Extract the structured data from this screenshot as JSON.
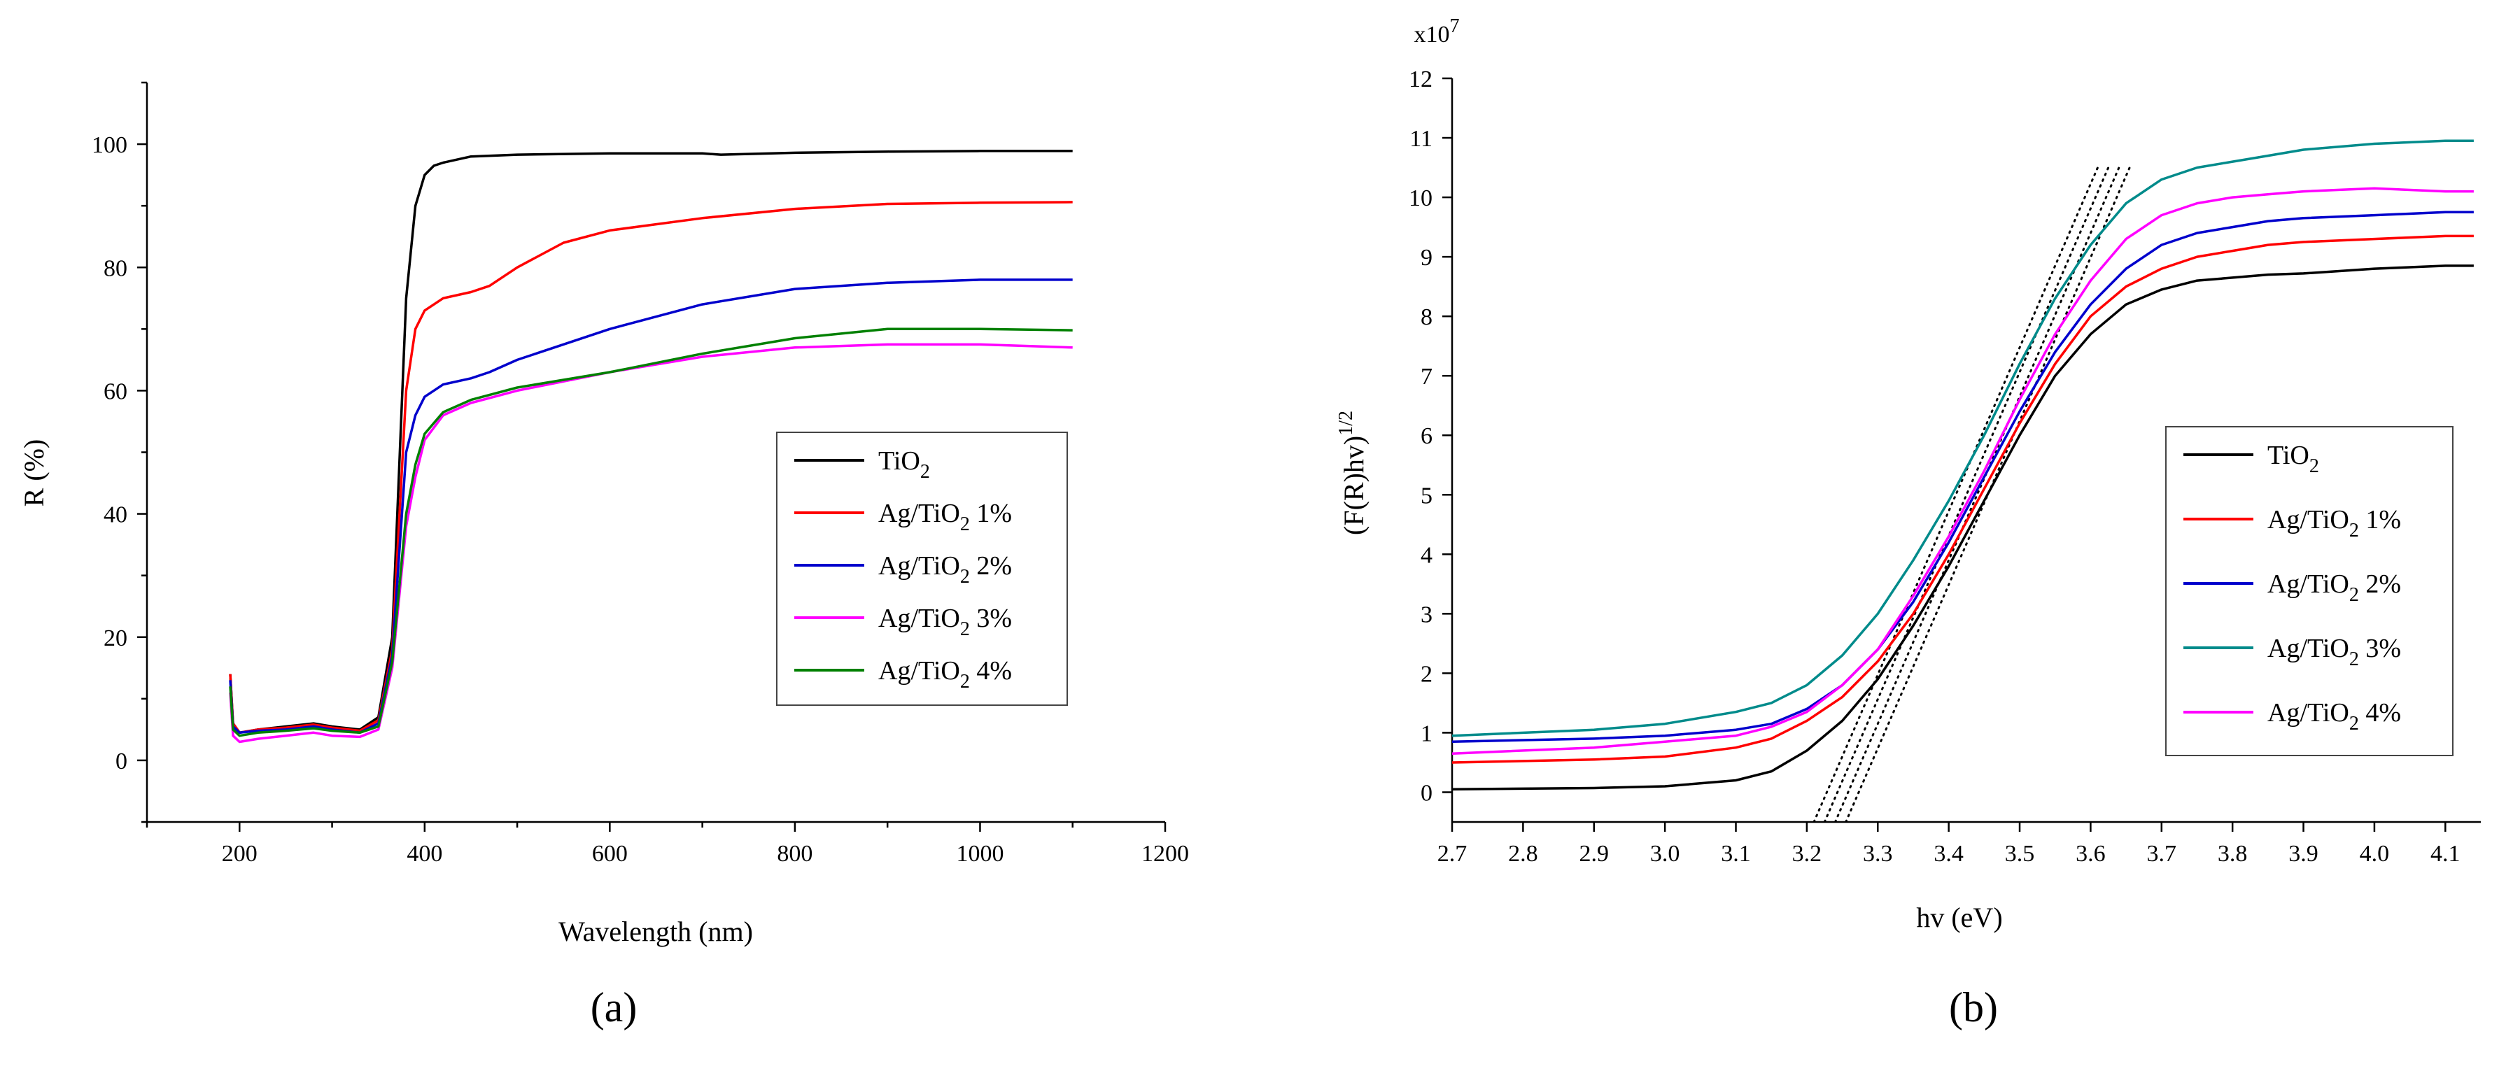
{
  "chart_data": [
    {
      "type": "line",
      "panel_label": "(a)",
      "xlabel": "Wavelength (nm)",
      "ylabel": "R (%)",
      "xlim": [
        100,
        1200
      ],
      "ylim": [
        -10,
        110
      ],
      "xticks": [
        200,
        400,
        600,
        800,
        1000,
        1200
      ],
      "yticks": [
        0,
        20,
        40,
        60,
        80,
        100
      ],
      "legend_position": "center-right",
      "series": [
        {
          "name": "TiO",
          "sub": "2",
          "suffix": "",
          "color": "#000000",
          "x": [
            190,
            193,
            200,
            220,
            250,
            280,
            300,
            330,
            350,
            365,
            380,
            390,
            400,
            410,
            420,
            450,
            500,
            600,
            700,
            720,
            800,
            900,
            1000,
            1100
          ],
          "y": [
            14,
            6,
            4.5,
            5,
            5.5,
            6,
            5.5,
            5,
            7,
            20,
            75,
            90,
            95,
            96.5,
            97,
            98,
            98.3,
            98.5,
            98.5,
            98.3,
            98.6,
            98.8,
            98.9,
            98.9
          ]
        },
        {
          "name": "Ag/TiO",
          "sub": "2",
          "suffix": " 1%",
          "color": "#ff0000",
          "x": [
            190,
            193,
            200,
            220,
            250,
            280,
            300,
            330,
            350,
            365,
            380,
            390,
            400,
            420,
            450,
            470,
            500,
            550,
            600,
            700,
            800,
            900,
            1000,
            1100
          ],
          "y": [
            14,
            6,
            4.5,
            5,
            5.3,
            5.8,
            5.3,
            4.8,
            6.5,
            18,
            60,
            70,
            73,
            75,
            76,
            77,
            80,
            84,
            86,
            88,
            89.5,
            90.3,
            90.5,
            90.6
          ]
        },
        {
          "name": "Ag/TiO",
          "sub": "2",
          "suffix": " 2%",
          "color": "#0000cc",
          "x": [
            190,
            193,
            200,
            220,
            250,
            280,
            300,
            330,
            350,
            365,
            380,
            390,
            400,
            420,
            450,
            470,
            500,
            600,
            700,
            800,
            900,
            1000,
            1100
          ],
          "y": [
            13,
            5.5,
            4.5,
            4.8,
            5,
            5.5,
            5,
            4.5,
            6,
            17,
            50,
            56,
            59,
            61,
            62,
            63,
            65,
            70,
            74,
            76.5,
            77.5,
            78,
            78
          ]
        },
        {
          "name": "Ag/TiO",
          "sub": "2",
          "suffix": " 3%",
          "color": "#ff00ff",
          "x": [
            190,
            193,
            200,
            220,
            250,
            280,
            300,
            330,
            350,
            365,
            380,
            390,
            400,
            420,
            450,
            500,
            600,
            700,
            800,
            900,
            1000,
            1100
          ],
          "y": [
            11,
            4,
            3,
            3.5,
            4,
            4.5,
            4,
            3.8,
            5,
            15,
            38,
            46,
            52,
            56,
            58,
            60,
            63,
            65.5,
            67,
            67.5,
            67.5,
            67
          ]
        },
        {
          "name": "Ag/TiO",
          "sub": "2",
          "suffix": " 4%",
          "color": "#008000",
          "x": [
            190,
            193,
            200,
            220,
            250,
            280,
            300,
            330,
            350,
            365,
            380,
            390,
            400,
            420,
            450,
            500,
            600,
            700,
            800,
            900,
            1000,
            1100
          ],
          "y": [
            12,
            5,
            4,
            4.5,
            4.8,
            5.2,
            4.8,
            4.5,
            5.5,
            16,
            40,
            48,
            53,
            56.5,
            58.5,
            60.5,
            63,
            66,
            68.5,
            70,
            70,
            69.8
          ]
        }
      ]
    },
    {
      "type": "line",
      "panel_label": "(b)",
      "xlabel": "hv (eV)",
      "ylabel": "(F(R)hv)",
      "ylabel_sup": "1/2",
      "y_multiplier": "x10",
      "y_multiplier_exp": "7",
      "xlim": [
        2.7,
        4.15
      ],
      "ylim": [
        -0.5,
        12
      ],
      "xticks": [
        2.7,
        2.8,
        2.9,
        3.0,
        3.1,
        3.2,
        3.3,
        3.4,
        3.5,
        3.6,
        3.7,
        3.8,
        3.9,
        4.0,
        4.1
      ],
      "yticks": [
        0,
        1,
        2,
        3,
        4,
        5,
        6,
        7,
        8,
        9,
        10,
        11,
        12
      ],
      "legend_position": "center-right",
      "series": [
        {
          "name": "TiO",
          "sub": "2",
          "suffix": "",
          "color": "#000000",
          "x": [
            2.7,
            2.9,
            3.0,
            3.1,
            3.15,
            3.2,
            3.25,
            3.3,
            3.35,
            3.4,
            3.45,
            3.5,
            3.55,
            3.6,
            3.65,
            3.7,
            3.75,
            3.8,
            3.85,
            3.9,
            4.0,
            4.1,
            4.14
          ],
          "y": [
            0.05,
            0.07,
            0.1,
            0.2,
            0.35,
            0.7,
            1.2,
            1.9,
            2.8,
            3.8,
            4.9,
            6.0,
            7.0,
            7.7,
            8.2,
            8.45,
            8.6,
            8.65,
            8.7,
            8.72,
            8.8,
            8.85,
            8.85
          ]
        },
        {
          "name": "Ag/TiO",
          "sub": "2",
          "suffix": " 1%",
          "color": "#ff0000",
          "x": [
            2.7,
            2.9,
            3.0,
            3.1,
            3.15,
            3.2,
            3.25,
            3.3,
            3.35,
            3.4,
            3.45,
            3.5,
            3.55,
            3.6,
            3.65,
            3.7,
            3.75,
            3.8,
            3.85,
            3.9,
            4.0,
            4.1,
            4.14
          ],
          "y": [
            0.5,
            0.55,
            0.6,
            0.75,
            0.9,
            1.2,
            1.6,
            2.2,
            3.0,
            4.0,
            5.1,
            6.2,
            7.2,
            8.0,
            8.5,
            8.8,
            9.0,
            9.1,
            9.2,
            9.25,
            9.3,
            9.35,
            9.35
          ]
        },
        {
          "name": "Ag/TiO",
          "sub": "2",
          "suffix": " 2%",
          "color": "#0000cc",
          "x": [
            2.7,
            2.9,
            3.0,
            3.1,
            3.15,
            3.2,
            3.25,
            3.3,
            3.35,
            3.4,
            3.45,
            3.5,
            3.55,
            3.6,
            3.65,
            3.7,
            3.75,
            3.8,
            3.85,
            3.9,
            4.0,
            4.1,
            4.14
          ],
          "y": [
            0.85,
            0.9,
            0.95,
            1.05,
            1.15,
            1.4,
            1.8,
            2.4,
            3.2,
            4.2,
            5.3,
            6.4,
            7.4,
            8.2,
            8.8,
            9.2,
            9.4,
            9.5,
            9.6,
            9.65,
            9.7,
            9.75,
            9.75
          ]
        },
        {
          "name": "Ag/TiO",
          "sub": "2",
          "suffix": " 3%",
          "color": "#008b8b",
          "x": [
            2.7,
            2.9,
            3.0,
            3.1,
            3.15,
            3.2,
            3.25,
            3.3,
            3.35,
            3.4,
            3.45,
            3.5,
            3.55,
            3.6,
            3.65,
            3.7,
            3.75,
            3.8,
            3.85,
            3.9,
            4.0,
            4.1,
            4.14
          ],
          "y": [
            0.95,
            1.05,
            1.15,
            1.35,
            1.5,
            1.8,
            2.3,
            3.0,
            3.9,
            4.9,
            6.0,
            7.2,
            8.3,
            9.2,
            9.9,
            10.3,
            10.5,
            10.6,
            10.7,
            10.8,
            10.9,
            10.95,
            10.95
          ]
        },
        {
          "name": "Ag/TiO",
          "sub": "2",
          "suffix": " 4%",
          "color": "#ff00ff",
          "x": [
            2.7,
            2.9,
            3.0,
            3.1,
            3.15,
            3.2,
            3.25,
            3.3,
            3.35,
            3.4,
            3.45,
            3.5,
            3.55,
            3.6,
            3.65,
            3.7,
            3.75,
            3.8,
            3.85,
            3.9,
            4.0,
            4.1,
            4.14
          ],
          "y": [
            0.65,
            0.75,
            0.85,
            0.95,
            1.1,
            1.35,
            1.8,
            2.4,
            3.3,
            4.3,
            5.4,
            6.6,
            7.7,
            8.6,
            9.3,
            9.7,
            9.9,
            10.0,
            10.05,
            10.1,
            10.15,
            10.1,
            10.1
          ]
        }
      ],
      "tangent_lines": [
        {
          "x": [
            3.21,
            3.61
          ],
          "y": [
            -0.5,
            10.5
          ]
        },
        {
          "x": [
            3.225,
            3.625
          ],
          "y": [
            -0.5,
            10.5
          ]
        },
        {
          "x": [
            3.24,
            3.64
          ],
          "y": [
            -0.5,
            10.5
          ]
        },
        {
          "x": [
            3.255,
            3.655
          ],
          "y": [
            -0.5,
            10.5
          ]
        }
      ]
    }
  ]
}
